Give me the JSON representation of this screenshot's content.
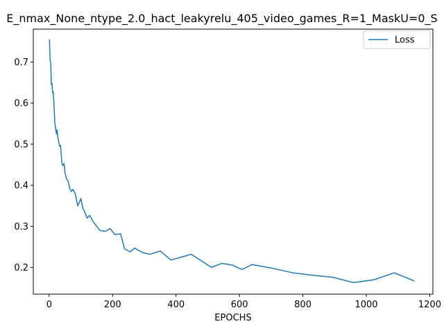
{
  "chart_data": {
    "type": "line",
    "title": "E_nmax_None_ntype_2.0_hact_leakyrelu_405_video_games_R=1_MaskU=0_S",
    "xlabel": "EPOCHS",
    "ylabel": "",
    "xlim": [
      -50,
      1210
    ],
    "ylim": [
      0.135,
      0.78
    ],
    "xticks": [
      0,
      200,
      400,
      600,
      800,
      1000,
      1200
    ],
    "yticks": [
      0.2,
      0.3,
      0.4,
      0.5,
      0.6,
      0.7
    ],
    "xtick_labels": [
      "0",
      "200",
      "400",
      "600",
      "800",
      "1000",
      "1200"
    ],
    "ytick_labels": [
      "0.2",
      "0.3",
      "0.4",
      "0.5",
      "0.6",
      "0.7"
    ],
    "legend": {
      "position": "top-right"
    },
    "grid": false,
    "series": [
      {
        "name": "Loss",
        "color": "#1f77b4",
        "x": [
          1,
          3,
          5,
          7,
          9,
          11,
          13,
          16,
          18,
          20,
          23,
          25,
          27,
          30,
          33,
          36,
          40,
          43,
          47,
          50,
          55,
          60,
          65,
          70,
          75,
          82,
          90,
          96,
          100,
          106,
          112,
          120,
          128,
          134,
          140,
          160,
          178,
          192,
          207,
          225,
          238,
          255,
          270,
          285,
          300,
          318,
          350,
          384,
          448,
          512,
          544,
          576,
          608,
          640,
          704,
          768,
          832,
          896,
          960,
          1024,
          1088,
          1152
        ],
        "y": [
          0.755,
          0.705,
          0.698,
          0.645,
          0.648,
          0.625,
          0.627,
          0.585,
          0.55,
          0.54,
          0.525,
          0.535,
          0.52,
          0.505,
          0.495,
          0.497,
          0.455,
          0.448,
          0.453,
          0.43,
          0.415,
          0.41,
          0.392,
          0.385,
          0.39,
          0.38,
          0.35,
          0.36,
          0.368,
          0.345,
          0.335,
          0.32,
          0.327,
          0.318,
          0.31,
          0.29,
          0.288,
          0.295,
          0.28,
          0.282,
          0.245,
          0.238,
          0.247,
          0.24,
          0.235,
          0.232,
          0.24,
          0.218,
          0.232,
          0.2,
          0.21,
          0.206,
          0.195,
          0.207,
          0.198,
          0.187,
          0.181,
          0.176,
          0.163,
          0.17,
          0.187,
          0.167
        ]
      }
    ]
  }
}
